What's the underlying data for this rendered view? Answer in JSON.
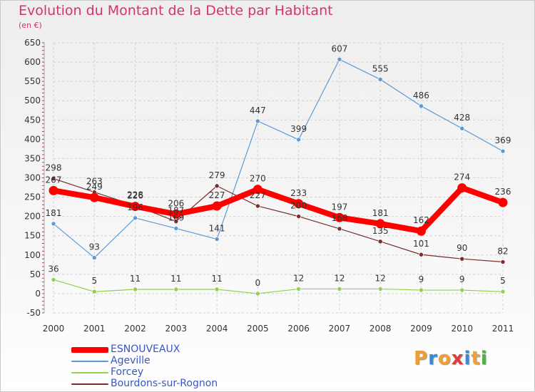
{
  "title": "Evolution du Montant de la Dette par Habitant",
  "subtitle": "(en €)",
  "logo": {
    "text": "Proxiti",
    "colors": [
      "#f0a030",
      "#3a8ad0",
      "#f0a030",
      "#e03c3c",
      "#3a8ad0",
      "#f0a030",
      "#50b040"
    ]
  },
  "chart_data": {
    "type": "line",
    "x": [
      "2000",
      "2001",
      "2002",
      "2003",
      "2004",
      "2005",
      "2006",
      "2007",
      "2008",
      "2009",
      "2010",
      "2011"
    ],
    "ylim": [
      -50,
      650
    ],
    "yticks": [
      -50,
      0,
      50,
      100,
      150,
      200,
      250,
      300,
      350,
      400,
      450,
      500,
      550,
      600,
      650
    ],
    "grid": true,
    "legend_position": "bottom-left",
    "series": [
      {
        "name": "ESNOUVEAUX",
        "color": "#ff0000",
        "emphasis": true,
        "values": [
          267,
          249,
          226,
          206,
          227,
          270,
          233,
          197,
          181,
          162,
          274,
          236
        ]
      },
      {
        "name": "Ageville",
        "color": "#5b9bd5",
        "emphasis": false,
        "values": [
          181,
          93,
          196,
          169,
          141,
          447,
          399,
          607,
          555,
          486,
          428,
          369
        ]
      },
      {
        "name": "Forcey",
        "color": "#92d050",
        "emphasis": false,
        "values": [
          36,
          5,
          11,
          11,
          11,
          0,
          12,
          12,
          12,
          9,
          9,
          5
        ]
      },
      {
        "name": "Bourdons-sur-Rognon",
        "color": "#7b2c2c",
        "emphasis": false,
        "values": [
          298,
          263,
          228,
          187,
          279,
          227,
          200,
          168,
          135,
          101,
          90,
          82
        ]
      }
    ]
  }
}
